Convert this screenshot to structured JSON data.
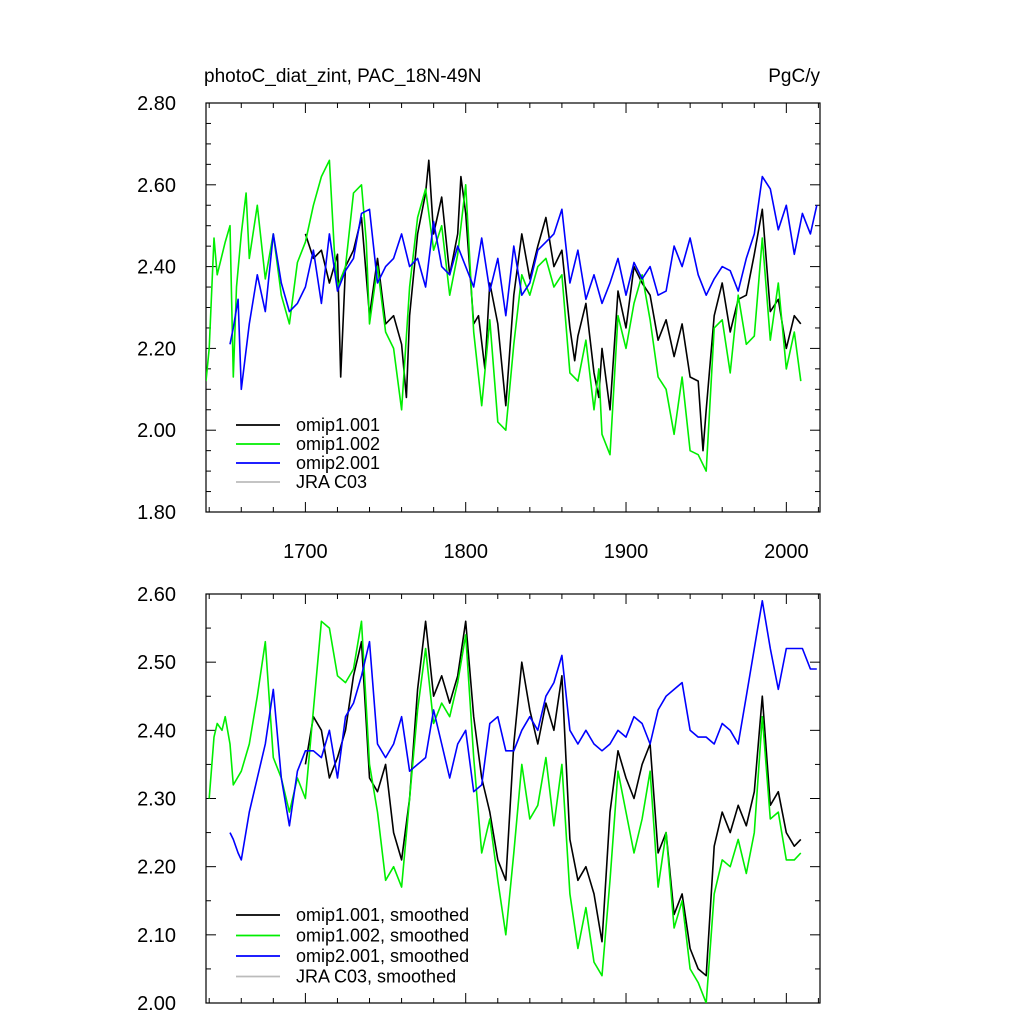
{
  "header": {
    "left_title": "photoC_diat_zint, PAC_18N-49N",
    "right_title": "PgC/y"
  },
  "colors": {
    "omip1.001": "#000000",
    "omip1.002": "#00ee00",
    "omip2.001": "#0000ff",
    "JRA C03": "#bbbbbb"
  },
  "chart_data": [
    {
      "type": "line",
      "title": "photoC_diat_zint, PAC_18N-49N",
      "units": "PgC/y",
      "xlim": [
        1638,
        2021
      ],
      "ylim": [
        1.8,
        2.8
      ],
      "xticks": [
        1700,
        1800,
        1900,
        2000
      ],
      "x_tick_labels": [
        "1700",
        "1800",
        "1900",
        "2000"
      ],
      "yticks": [
        1.8,
        2.0,
        2.2,
        2.4,
        2.6,
        2.8
      ],
      "y_tick_labels": [
        "1.80",
        "2.00",
        "2.20",
        "2.40",
        "2.60",
        "2.80"
      ],
      "legend_position": "bottom-left",
      "legend": [
        "omip1.001",
        "omip1.002",
        "omip2.001",
        "JRA C03"
      ],
      "series": [
        {
          "name": "omip1.001",
          "color": "#000000",
          "x": [
            1700,
            1705,
            1710,
            1715,
            1720,
            1722,
            1725,
            1730,
            1735,
            1740,
            1745,
            1750,
            1755,
            1760,
            1763,
            1765,
            1770,
            1775,
            1777,
            1780,
            1785,
            1790,
            1795,
            1797,
            1800,
            1805,
            1808,
            1812,
            1815,
            1820,
            1825,
            1830,
            1835,
            1840,
            1845,
            1850,
            1855,
            1860,
            1865,
            1868,
            1870,
            1875,
            1880,
            1883,
            1885,
            1890,
            1895,
            1900,
            1905,
            1910,
            1915,
            1920,
            1925,
            1930,
            1935,
            1940,
            1945,
            1948,
            1950,
            1955,
            1960,
            1965,
            1970,
            1975,
            1980,
            1985,
            1990,
            1995,
            2000,
            2005,
            2009
          ],
          "y": [
            2.48,
            2.42,
            2.44,
            2.36,
            2.43,
            2.13,
            2.4,
            2.44,
            2.52,
            2.28,
            2.42,
            2.26,
            2.28,
            2.21,
            2.08,
            2.28,
            2.48,
            2.58,
            2.66,
            2.48,
            2.57,
            2.38,
            2.48,
            2.62,
            2.53,
            2.26,
            2.28,
            2.15,
            2.36,
            2.26,
            2.06,
            2.33,
            2.48,
            2.37,
            2.45,
            2.52,
            2.4,
            2.44,
            2.25,
            2.17,
            2.23,
            2.31,
            2.14,
            2.08,
            2.2,
            2.05,
            2.34,
            2.25,
            2.4,
            2.36,
            2.33,
            2.22,
            2.27,
            2.18,
            2.26,
            2.13,
            2.12,
            1.95,
            2.05,
            2.28,
            2.36,
            2.24,
            2.32,
            2.33,
            2.43,
            2.54,
            2.29,
            2.32,
            2.2,
            2.28,
            2.26
          ]
        },
        {
          "name": "omip1.002",
          "color": "#00ee00",
          "x": [
            1638,
            1640,
            1643,
            1645,
            1650,
            1653,
            1655,
            1657,
            1660,
            1663,
            1665,
            1670,
            1675,
            1680,
            1685,
            1690,
            1695,
            1700,
            1705,
            1710,
            1715,
            1718,
            1720,
            1725,
            1730,
            1735,
            1738,
            1740,
            1745,
            1750,
            1755,
            1760,
            1765,
            1770,
            1775,
            1780,
            1785,
            1790,
            1795,
            1800,
            1805,
            1810,
            1815,
            1820,
            1825,
            1830,
            1835,
            1840,
            1845,
            1850,
            1855,
            1860,
            1865,
            1870,
            1875,
            1880,
            1883,
            1885,
            1890,
            1895,
            1900,
            1905,
            1910,
            1915,
            1920,
            1925,
            1930,
            1935,
            1940,
            1945,
            1950,
            1955,
            1960,
            1965,
            1970,
            1975,
            1980,
            1985,
            1990,
            1995,
            2000,
            2005,
            2009
          ],
          "y": [
            2.12,
            2.2,
            2.47,
            2.38,
            2.46,
            2.5,
            2.13,
            2.35,
            2.48,
            2.58,
            2.42,
            2.55,
            2.37,
            2.48,
            2.33,
            2.26,
            2.41,
            2.46,
            2.55,
            2.62,
            2.66,
            2.44,
            2.35,
            2.4,
            2.58,
            2.6,
            2.46,
            2.26,
            2.4,
            2.24,
            2.2,
            2.05,
            2.35,
            2.52,
            2.59,
            2.44,
            2.5,
            2.33,
            2.43,
            2.6,
            2.24,
            2.06,
            2.27,
            2.02,
            2.0,
            2.21,
            2.38,
            2.33,
            2.4,
            2.42,
            2.35,
            2.38,
            2.14,
            2.12,
            2.22,
            2.05,
            2.15,
            1.99,
            1.94,
            2.28,
            2.2,
            2.31,
            2.38,
            2.27,
            2.13,
            2.1,
            1.99,
            2.13,
            1.95,
            1.94,
            1.9,
            2.25,
            2.27,
            2.14,
            2.33,
            2.21,
            2.23,
            2.47,
            2.22,
            2.36,
            2.15,
            2.24,
            2.12
          ]
        },
        {
          "name": "omip2.001",
          "color": "#0000ff",
          "x": [
            1653,
            1655,
            1658,
            1660,
            1665,
            1670,
            1675,
            1680,
            1685,
            1690,
            1695,
            1700,
            1705,
            1710,
            1715,
            1720,
            1725,
            1730,
            1735,
            1740,
            1745,
            1750,
            1755,
            1760,
            1765,
            1770,
            1775,
            1780,
            1785,
            1790,
            1795,
            1800,
            1805,
            1810,
            1815,
            1820,
            1825,
            1830,
            1835,
            1840,
            1845,
            1850,
            1855,
            1860,
            1865,
            1870,
            1875,
            1880,
            1885,
            1890,
            1895,
            1900,
            1905,
            1910,
            1915,
            1920,
            1925,
            1930,
            1935,
            1940,
            1945,
            1950,
            1955,
            1960,
            1965,
            1970,
            1975,
            1980,
            1985,
            1990,
            1995,
            2000,
            2005,
            2010,
            2015,
            2019
          ],
          "y": [
            2.21,
            2.25,
            2.32,
            2.1,
            2.26,
            2.38,
            2.29,
            2.48,
            2.36,
            2.29,
            2.31,
            2.35,
            2.44,
            2.31,
            2.48,
            2.34,
            2.39,
            2.42,
            2.53,
            2.54,
            2.36,
            2.4,
            2.42,
            2.48,
            2.4,
            2.42,
            2.35,
            2.51,
            2.4,
            2.38,
            2.45,
            2.4,
            2.35,
            2.47,
            2.34,
            2.42,
            2.28,
            2.45,
            2.33,
            2.36,
            2.44,
            2.46,
            2.48,
            2.54,
            2.36,
            2.44,
            2.32,
            2.38,
            2.31,
            2.36,
            2.42,
            2.33,
            2.41,
            2.37,
            2.4,
            2.33,
            2.34,
            2.45,
            2.4,
            2.47,
            2.38,
            2.33,
            2.37,
            2.4,
            2.39,
            2.34,
            2.42,
            2.48,
            2.62,
            2.59,
            2.49,
            2.55,
            2.43,
            2.53,
            2.48,
            2.55
          ]
        },
        {
          "name": "JRA C03",
          "color": "#bbbbbb",
          "x": [],
          "y": []
        }
      ]
    },
    {
      "type": "line",
      "title": "",
      "ylim": [
        2.0,
        2.6
      ],
      "xlim": [
        1638,
        2021
      ],
      "xticks": [
        1700,
        1800,
        1900,
        2000
      ],
      "yticks": [
        2.0,
        2.1,
        2.2,
        2.3,
        2.4,
        2.5,
        2.6
      ],
      "y_tick_labels": [
        "2.00",
        "2.10",
        "2.20",
        "2.30",
        "2.40",
        "2.50",
        "2.60"
      ],
      "legend_position": "bottom-left",
      "legend": [
        "omip1.001, smoothed",
        "omip1.002, smoothed",
        "omip2.001, smoothed",
        "JRA C03, smoothed"
      ],
      "series": [
        {
          "name": "omip1.001, smoothed",
          "color": "#000000",
          "x": [
            1700,
            1705,
            1710,
            1715,
            1720,
            1725,
            1730,
            1735,
            1740,
            1745,
            1750,
            1755,
            1760,
            1765,
            1770,
            1775,
            1780,
            1785,
            1790,
            1795,
            1800,
            1805,
            1810,
            1815,
            1820,
            1825,
            1830,
            1835,
            1840,
            1845,
            1850,
            1855,
            1860,
            1865,
            1870,
            1875,
            1880,
            1885,
            1890,
            1895,
            1900,
            1905,
            1910,
            1915,
            1920,
            1925,
            1930,
            1935,
            1940,
            1945,
            1950,
            1955,
            1960,
            1965,
            1970,
            1975,
            1980,
            1985,
            1990,
            1995,
            2000,
            2005,
            2009
          ],
          "y": [
            2.35,
            2.42,
            2.4,
            2.33,
            2.36,
            2.4,
            2.48,
            2.53,
            2.33,
            2.31,
            2.35,
            2.25,
            2.21,
            2.3,
            2.46,
            2.56,
            2.45,
            2.48,
            2.44,
            2.48,
            2.56,
            2.42,
            2.33,
            2.28,
            2.21,
            2.18,
            2.38,
            2.5,
            2.43,
            2.38,
            2.44,
            2.4,
            2.48,
            2.24,
            2.18,
            2.2,
            2.16,
            2.09,
            2.28,
            2.37,
            2.33,
            2.3,
            2.35,
            2.38,
            2.22,
            2.25,
            2.13,
            2.16,
            2.08,
            2.05,
            2.04,
            2.23,
            2.28,
            2.25,
            2.29,
            2.26,
            2.31,
            2.45,
            2.29,
            2.31,
            2.25,
            2.23,
            2.24
          ]
        },
        {
          "name": "omip1.002, smoothed",
          "color": "#00ee00",
          "x": [
            1640,
            1643,
            1645,
            1648,
            1650,
            1653,
            1655,
            1660,
            1665,
            1670,
            1675,
            1680,
            1685,
            1690,
            1695,
            1700,
            1705,
            1710,
            1715,
            1720,
            1725,
            1730,
            1735,
            1740,
            1745,
            1750,
            1755,
            1760,
            1765,
            1770,
            1775,
            1780,
            1785,
            1790,
            1795,
            1800,
            1805,
            1810,
            1815,
            1820,
            1825,
            1830,
            1835,
            1840,
            1845,
            1850,
            1855,
            1860,
            1865,
            1870,
            1875,
            1880,
            1885,
            1890,
            1895,
            1900,
            1905,
            1910,
            1915,
            1920,
            1925,
            1930,
            1935,
            1940,
            1945,
            1950,
            1955,
            1960,
            1965,
            1970,
            1975,
            1980,
            1985,
            1990,
            1995,
            2000,
            2005,
            2009
          ],
          "y": [
            2.3,
            2.39,
            2.41,
            2.4,
            2.42,
            2.38,
            2.32,
            2.34,
            2.38,
            2.45,
            2.53,
            2.36,
            2.33,
            2.28,
            2.33,
            2.3,
            2.43,
            2.56,
            2.55,
            2.48,
            2.47,
            2.49,
            2.56,
            2.35,
            2.28,
            2.18,
            2.2,
            2.17,
            2.3,
            2.43,
            2.52,
            2.41,
            2.44,
            2.42,
            2.47,
            2.54,
            2.36,
            2.22,
            2.27,
            2.18,
            2.1,
            2.22,
            2.35,
            2.27,
            2.29,
            2.36,
            2.26,
            2.35,
            2.16,
            2.08,
            2.14,
            2.06,
            2.04,
            2.18,
            2.34,
            2.28,
            2.22,
            2.27,
            2.34,
            2.17,
            2.25,
            2.11,
            2.15,
            2.05,
            2.03,
            2.0,
            2.16,
            2.21,
            2.2,
            2.24,
            2.19,
            2.25,
            2.42,
            2.27,
            2.28,
            2.21,
            2.21,
            2.22
          ]
        },
        {
          "name": "omip2.001, smoothed",
          "color": "#0000ff",
          "x": [
            1653,
            1655,
            1658,
            1660,
            1665,
            1670,
            1675,
            1680,
            1685,
            1690,
            1695,
            1700,
            1705,
            1710,
            1715,
            1720,
            1725,
            1730,
            1735,
            1740,
            1745,
            1750,
            1755,
            1760,
            1765,
            1770,
            1775,
            1780,
            1785,
            1790,
            1795,
            1800,
            1805,
            1810,
            1815,
            1820,
            1825,
            1830,
            1835,
            1840,
            1845,
            1850,
            1855,
            1860,
            1865,
            1870,
            1875,
            1880,
            1885,
            1890,
            1895,
            1900,
            1905,
            1910,
            1915,
            1920,
            1925,
            1930,
            1935,
            1940,
            1945,
            1950,
            1955,
            1960,
            1965,
            1970,
            1975,
            1980,
            1985,
            1990,
            1995,
            2000,
            2005,
            2010,
            2015,
            2019
          ],
          "y": [
            2.25,
            2.24,
            2.22,
            2.21,
            2.28,
            2.33,
            2.38,
            2.46,
            2.33,
            2.26,
            2.34,
            2.37,
            2.37,
            2.36,
            2.4,
            2.33,
            2.42,
            2.44,
            2.48,
            2.53,
            2.38,
            2.36,
            2.38,
            2.42,
            2.34,
            2.35,
            2.36,
            2.43,
            2.38,
            2.33,
            2.38,
            2.4,
            2.31,
            2.32,
            2.41,
            2.42,
            2.37,
            2.37,
            2.4,
            2.42,
            2.4,
            2.45,
            2.47,
            2.51,
            2.4,
            2.38,
            2.4,
            2.38,
            2.37,
            2.38,
            2.4,
            2.39,
            2.42,
            2.41,
            2.38,
            2.43,
            2.45,
            2.46,
            2.47,
            2.4,
            2.39,
            2.39,
            2.38,
            2.41,
            2.4,
            2.38,
            2.45,
            2.52,
            2.59,
            2.52,
            2.46,
            2.52,
            2.52,
            2.52,
            2.49,
            2.49
          ]
        },
        {
          "name": "JRA C03, smoothed",
          "color": "#bbbbbb",
          "x": [],
          "y": []
        }
      ]
    }
  ]
}
